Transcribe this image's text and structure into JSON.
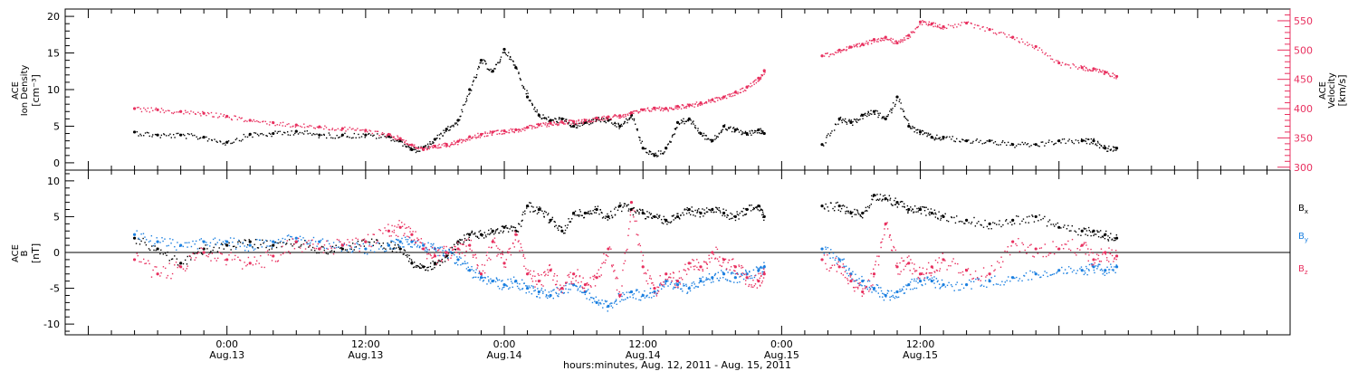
{
  "colors": {
    "black": "#000000",
    "pink": "#e8305f",
    "blue": "#1a7fe0"
  },
  "chart_data": [
    {
      "type": "scatter",
      "panel": "top",
      "ylabel_left": [
        "ACE",
        "Ion Density",
        "[cm⁻³]"
      ],
      "ylabel_right": [
        "ACE",
        "Velocity",
        "[km/s]"
      ],
      "ylim_left": [
        -1,
        21
      ],
      "ylim_right": [
        295,
        570
      ],
      "yticks_left": [
        "0",
        "5",
        "10",
        "15",
        "20"
      ],
      "yticks_right": [
        "300",
        "350",
        "400",
        "450",
        "500",
        "550"
      ],
      "series": [
        {
          "color": "#000000",
          "axis": "left",
          "x": [
            -8,
            -6,
            -4,
            -2,
            0,
            2,
            4,
            6,
            8,
            10,
            12,
            14,
            15,
            16,
            17,
            18,
            19,
            20,
            21,
            22,
            23,
            24,
            25,
            26,
            27,
            28,
            29,
            30,
            31,
            32,
            33,
            34,
            35,
            36,
            37,
            38,
            39,
            40,
            41,
            42,
            43,
            44,
            45,
            46,
            46.5,
            51.5,
            53,
            54,
            55,
            56,
            57,
            58,
            59,
            60,
            61,
            62,
            64,
            66,
            68,
            70,
            72,
            74,
            75,
            76,
            77
          ],
          "y": [
            4.2,
            3.8,
            3.8,
            3.5,
            2.8,
            3.9,
            4.0,
            4.3,
            3.8,
            3.8,
            3.8,
            3.6,
            3.0,
            1.8,
            2.0,
            3.2,
            4.6,
            5.8,
            10.0,
            14.0,
            12.5,
            15.5,
            13.0,
            9.0,
            6.5,
            5.8,
            6.0,
            5.0,
            5.5,
            6.0,
            5.8,
            5.0,
            6.5,
            2.0,
            1.0,
            2.0,
            5.5,
            6.0,
            4.0,
            3.0,
            5.0,
            4.5,
            4.0,
            4.5,
            4.0,
            2.5,
            6.0,
            5.5,
            6.5,
            7.0,
            6.0,
            9.0,
            5.0,
            4.2,
            3.5,
            3.5,
            3.0,
            3.0,
            2.5,
            2.5,
            3.0,
            3.0,
            3.0,
            2.0,
            2.0
          ]
        },
        {
          "color": "#e8305f",
          "axis": "right",
          "x": [
            -8,
            -6,
            -4,
            -2,
            0,
            2,
            4,
            6,
            8,
            10,
            12,
            14,
            15,
            16,
            17,
            18,
            19,
            20,
            21,
            22,
            23,
            24,
            25,
            26,
            27,
            28,
            29,
            30,
            31,
            32,
            33,
            34,
            35,
            36,
            37,
            38,
            39,
            40,
            41,
            42,
            43,
            44,
            45,
            46,
            46.5,
            51.5,
            53,
            54,
            55,
            56,
            57,
            58,
            59,
            60,
            61,
            62,
            64,
            66,
            68,
            70,
            72,
            74,
            75,
            76,
            77
          ],
          "y": [
            400,
            398,
            395,
            392,
            387,
            380,
            376,
            372,
            369,
            366,
            363,
            356,
            349,
            338,
            330,
            336,
            339,
            344,
            352,
            356,
            360,
            362,
            364,
            368,
            372,
            375,
            377,
            378,
            380,
            384,
            386,
            388,
            393,
            398,
            401,
            400,
            404,
            406,
            410,
            415,
            420,
            428,
            437,
            452,
            465,
            490,
            500,
            505,
            510,
            518,
            522,
            512,
            525,
            548,
            545,
            540,
            546,
            535,
            522,
            506,
            478,
            470,
            468,
            462,
            455
          ]
        }
      ]
    },
    {
      "type": "scatter",
      "panel": "bottom",
      "ylabel": [
        "ACE",
        "B",
        "[nT]"
      ],
      "ylim": [
        -11.5,
        11.5
      ],
      "yticks": [
        "-10",
        "-5",
        "0",
        "5",
        "10"
      ],
      "xlabel": "hours:minutes, Aug. 12, 2011 - Aug. 15, 2011",
      "xlim": [
        -14,
        92
      ],
      "xticks": [
        {
          "x": 0,
          "time": "0:00",
          "date": "Aug.13"
        },
        {
          "x": 12,
          "time": "12:00",
          "date": "Aug.13"
        },
        {
          "x": 24,
          "time": "0:00",
          "date": "Aug.14"
        },
        {
          "x": 36,
          "time": "12:00",
          "date": "Aug.14"
        },
        {
          "x": 48,
          "time": "0:00",
          "date": "Aug.15"
        },
        {
          "x": 60,
          "time": "12:00",
          "date": "Aug.15"
        }
      ],
      "series": [
        {
          "name": "B",
          "sub": "x",
          "color": "#000000",
          "x": [
            -8,
            -6,
            -4,
            -2,
            0,
            2,
            4,
            6,
            8,
            10,
            12,
            14,
            15,
            16,
            17,
            18,
            19,
            20,
            21,
            22,
            23,
            24,
            25,
            26,
            27,
            28,
            29,
            30,
            31,
            32,
            33,
            34,
            35,
            36,
            37,
            38,
            39,
            40,
            41,
            42,
            43,
            44,
            45,
            46,
            46.5,
            51.5,
            53,
            54,
            55,
            56,
            57,
            58,
            59,
            60,
            61,
            62,
            64,
            66,
            68,
            70,
            72,
            74,
            75,
            76,
            77
          ],
          "y": [
            2.0,
            0.5,
            -1.5,
            0.5,
            1.0,
            1.5,
            1.0,
            1.5,
            0.5,
            0.5,
            1.5,
            1.0,
            0.5,
            -1.5,
            -2.0,
            -1.5,
            -0.5,
            1.5,
            2.5,
            2.5,
            3.0,
            3.5,
            3.0,
            6.5,
            6.0,
            4.5,
            3.0,
            5.5,
            5.5,
            6.0,
            5.0,
            6.5,
            6.0,
            5.5,
            5.0,
            4.5,
            5.0,
            6.0,
            5.5,
            6.0,
            5.5,
            5.0,
            6.0,
            6.5,
            5.0,
            6.5,
            6.5,
            5.5,
            5.5,
            8.0,
            7.5,
            7.0,
            6.0,
            6.0,
            5.5,
            5.0,
            4.5,
            4.0,
            4.5,
            5.0,
            3.5,
            3.0,
            3.0,
            2.5,
            2.0
          ]
        },
        {
          "name": "B",
          "sub": "y",
          "color": "#1a7fe0",
          "x": [
            -8,
            -6,
            -4,
            -2,
            0,
            2,
            4,
            6,
            8,
            10,
            12,
            14,
            15,
            16,
            17,
            18,
            19,
            20,
            21,
            22,
            23,
            24,
            25,
            26,
            27,
            28,
            29,
            30,
            31,
            32,
            33,
            34,
            35,
            36,
            37,
            38,
            39,
            40,
            41,
            42,
            43,
            44,
            45,
            46,
            46.5,
            51.5,
            53,
            54,
            55,
            56,
            57,
            58,
            59,
            60,
            61,
            62,
            64,
            66,
            68,
            70,
            72,
            74,
            75,
            76,
            77
          ],
          "y": [
            2.5,
            1.5,
            1.0,
            1.5,
            1.5,
            1.0,
            1.5,
            2.0,
            1.5,
            1.0,
            0.5,
            1.0,
            1.5,
            1.5,
            1.0,
            0.5,
            0.0,
            -1.0,
            -2.5,
            -3.5,
            -4.0,
            -4.5,
            -4.0,
            -5.0,
            -5.5,
            -6.0,
            -5.0,
            -4.5,
            -5.5,
            -7.0,
            -7.5,
            -6.0,
            -5.5,
            -6.0,
            -5.5,
            -4.0,
            -4.5,
            -5.0,
            -4.0,
            -3.5,
            -3.0,
            -3.5,
            -3.0,
            -2.5,
            -2.0,
            0.5,
            -1.0,
            -3.0,
            -4.0,
            -5.0,
            -6.0,
            -5.5,
            -4.5,
            -4.0,
            -4.0,
            -4.5,
            -4.5,
            -4.0,
            -3.5,
            -3.0,
            -2.5,
            -2.5,
            -2.0,
            -2.5,
            -2.0
          ]
        },
        {
          "name": "B",
          "sub": "z",
          "color": "#e8305f",
          "x": [
            -8,
            -6,
            -4,
            -2,
            0,
            2,
            4,
            6,
            8,
            10,
            12,
            14,
            15,
            16,
            17,
            18,
            19,
            20,
            21,
            22,
            23,
            24,
            25,
            26,
            27,
            28,
            29,
            30,
            31,
            32,
            33,
            34,
            35,
            36,
            37,
            38,
            39,
            40,
            41,
            42,
            43,
            44,
            45,
            46,
            46.5,
            51.5,
            53,
            54,
            55,
            56,
            57,
            58,
            59,
            60,
            61,
            62,
            64,
            66,
            68,
            70,
            72,
            74,
            75,
            76,
            77
          ],
          "y": [
            -1.0,
            -3.0,
            -2.0,
            0.0,
            -1.0,
            -1.5,
            -0.5,
            1.5,
            0.5,
            1.0,
            1.5,
            3.0,
            3.5,
            2.5,
            0.5,
            -0.5,
            0.0,
            0.5,
            1.0,
            -3.0,
            1.5,
            -1.5,
            2.5,
            -3.0,
            -4.0,
            -2.5,
            -5.0,
            -3.0,
            -4.5,
            -3.5,
            0.5,
            -6.0,
            7.0,
            -2.0,
            -5.0,
            -3.0,
            -4.0,
            -1.5,
            -2.0,
            0.0,
            -1.0,
            -2.0,
            -3.5,
            -4.0,
            -3.0,
            -1.0,
            -2.0,
            -4.0,
            -5.5,
            -3.0,
            4.0,
            -2.0,
            -1.5,
            -3.0,
            -2.0,
            -1.0,
            -2.5,
            -3.0,
            1.5,
            0.5,
            0.5,
            1.0,
            -1.0,
            0.0,
            -0.5
          ]
        }
      ]
    }
  ]
}
